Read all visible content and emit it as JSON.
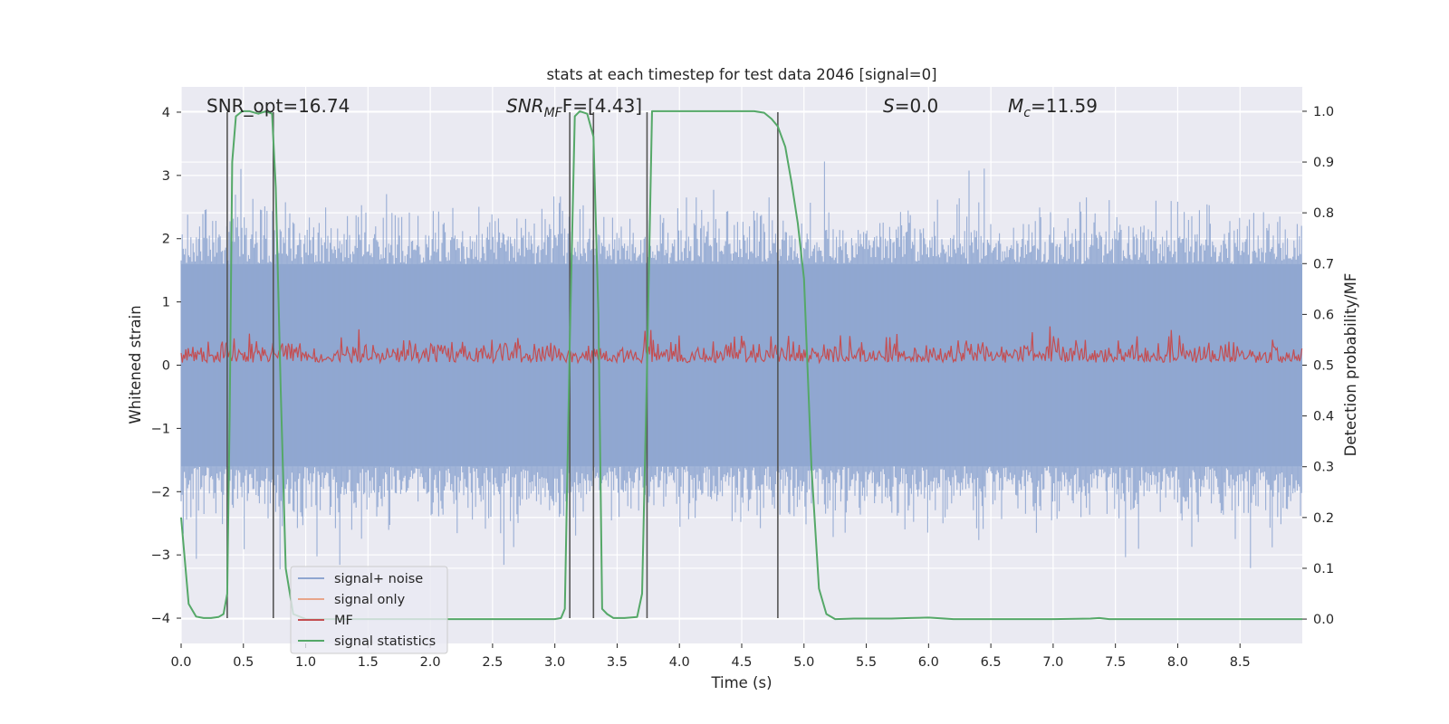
{
  "chart_data": {
    "type": "line",
    "title": "stats at each timestep for test data 2046 [signal=0]",
    "xlabel": "Time (s)",
    "ylabel_left": "Whitened strain",
    "ylabel_right": "Detection probability/MF",
    "xlim": [
      0,
      9.0
    ],
    "ylim_left": [
      -4.4,
      4.4
    ],
    "ylim_right": [
      -0.048,
      1.048
    ],
    "x_ticks": [
      0.0,
      0.5,
      1.0,
      1.5,
      2.0,
      2.5,
      3.0,
      3.5,
      4.0,
      4.5,
      5.0,
      5.5,
      6.0,
      6.5,
      7.0,
      7.5,
      8.0,
      8.5
    ],
    "x_tick_labels": [
      "0.0",
      "0.5",
      "1.0",
      "1.5",
      "2.0",
      "2.5",
      "3.0",
      "3.5",
      "4.0",
      "4.5",
      "5.0",
      "5.5",
      "6.0",
      "6.5",
      "7.0",
      "7.5",
      "8.0",
      "8.5"
    ],
    "y_left_ticks": [
      -4,
      -3,
      -2,
      -1,
      0,
      1,
      2,
      3,
      4
    ],
    "y_left_tick_labels": [
      "−4",
      "−3",
      "−2",
      "−1",
      "0",
      "1",
      "2",
      "3",
      "4"
    ],
    "y_right_ticks": [
      0.0,
      0.1,
      0.2,
      0.3,
      0.4,
      0.5,
      0.6,
      0.7,
      0.8,
      0.9,
      1.0
    ],
    "y_right_tick_labels": [
      "0.0",
      "0.1",
      "0.2",
      "0.3",
      "0.4",
      "0.5",
      "0.6",
      "0.7",
      "0.8",
      "0.9",
      "1.0"
    ],
    "annotations": {
      "snr_opt": "SNR_opt=16.74",
      "snr_mf_base": "SNR",
      "snr_mf_sub": "MF",
      "snr_mf_tail": "F=[4.43]",
      "s_base": "S",
      "s_tail": "=0.0",
      "mc_base": "M",
      "mc_sub": "c",
      "mc_tail": "=11.59"
    },
    "legend": {
      "position": "lower-left",
      "entries": [
        {
          "label": "signal+ noise",
          "color": "#8fa6d0"
        },
        {
          "label": "signal only",
          "color": "#e8a58a"
        },
        {
          "label": "MF",
          "color": "#c44e52"
        },
        {
          "label": "signal statistics",
          "color": "#55a868"
        }
      ]
    },
    "series": [
      {
        "name": "signal+ noise",
        "axis": "left",
        "color": "#8fa6d0",
        "description": "dense whitened strain trace",
        "envelope_core": [
          -1.6,
          1.6
        ],
        "typical_peaks": [
          -3.0,
          3.0
        ],
        "extreme": [
          -3.9,
          3.4
        ]
      },
      {
        "name": "signal only",
        "axis": "left",
        "color": "#e8a58a",
        "values": []
      },
      {
        "name": "MF",
        "axis": "right",
        "color": "#c44e52",
        "description": "matched filter output",
        "baseline": 0.505,
        "range": [
          0.505,
          0.62
        ]
      },
      {
        "name": "signal statistics",
        "axis": "right",
        "color": "#55a868",
        "x": [
          0.0,
          0.06,
          0.12,
          0.18,
          0.24,
          0.3,
          0.34,
          0.37,
          0.39,
          0.41,
          0.44,
          0.49,
          0.55,
          0.62,
          0.68,
          0.73,
          0.76,
          0.8,
          0.84,
          0.9,
          1.0,
          1.5,
          2.0,
          2.5,
          3.0,
          3.05,
          3.08,
          3.12,
          3.16,
          3.2,
          3.26,
          3.31,
          3.35,
          3.38,
          3.42,
          3.47,
          3.56,
          3.66,
          3.7,
          3.74,
          3.78,
          3.82,
          4.0,
          4.3,
          4.6,
          4.68,
          4.74,
          4.79,
          4.85,
          4.9,
          4.95,
          5.0,
          5.06,
          5.12,
          5.18,
          5.25,
          5.4,
          5.7,
          5.85,
          6.0,
          6.2,
          6.6,
          7.0,
          7.3,
          7.37,
          7.45,
          8.0,
          8.5,
          9.0
        ],
        "y": [
          0.2,
          0.03,
          0.005,
          0.002,
          0.002,
          0.004,
          0.01,
          0.05,
          0.4,
          0.9,
          0.99,
          1.0,
          1.0,
          0.995,
          1.0,
          0.995,
          0.85,
          0.45,
          0.1,
          0.01,
          0.0,
          0.0,
          0.0,
          0.0,
          0.0,
          0.002,
          0.02,
          0.55,
          0.99,
          1.0,
          0.995,
          0.95,
          0.6,
          0.02,
          0.01,
          0.002,
          0.002,
          0.004,
          0.05,
          0.5,
          1.0,
          1.0,
          1.0,
          1.0,
          1.0,
          0.997,
          0.985,
          0.97,
          0.93,
          0.86,
          0.78,
          0.67,
          0.3,
          0.06,
          0.01,
          0.0,
          0.001,
          0.001,
          0.002,
          0.003,
          0.0,
          0.0,
          0.0,
          0.001,
          0.002,
          0.0,
          0.0,
          0.0,
          0.0
        ]
      }
    ],
    "vertical_markers": [
      {
        "x": 0.37,
        "y_from": -4.0,
        "y_to": 4.0
      },
      {
        "x": 0.74,
        "y_from": -4.0,
        "y_to": 4.0
      },
      {
        "x": 3.12,
        "y_from": -4.0,
        "y_to": 4.0
      },
      {
        "x": 3.31,
        "y_from": -4.0,
        "y_to": 4.0
      },
      {
        "x": 3.74,
        "y_from": -4.0,
        "y_to": 4.0
      },
      {
        "x": 4.79,
        "y_from": -4.0,
        "y_to": 4.0
      }
    ]
  }
}
